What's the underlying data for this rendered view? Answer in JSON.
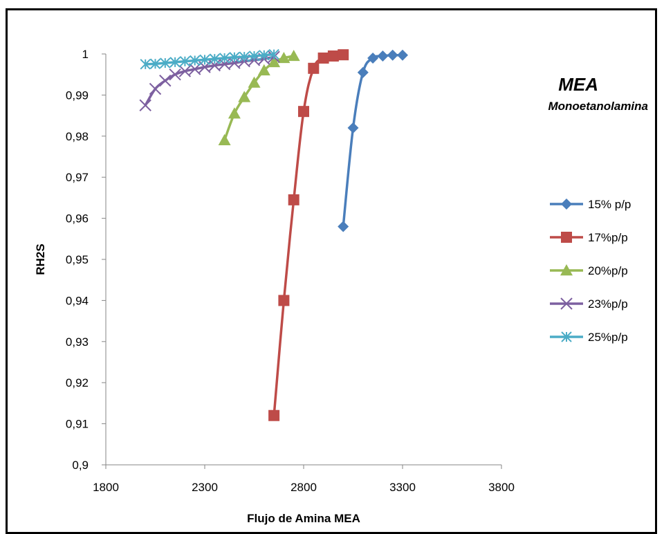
{
  "chart_data": {
    "type": "line",
    "title": "",
    "xlabel": "Flujo de Amina MEA",
    "ylabel": "RH2S",
    "xlim": [
      1800,
      3800
    ],
    "ylim": [
      0.9,
      1.0
    ],
    "xticks": [
      1800,
      2300,
      2800,
      3300,
      3800
    ],
    "xtick_labels": [
      "1800",
      "2300",
      "2800",
      "3300",
      "3800"
    ],
    "yticks": [
      0.9,
      0.91,
      0.92,
      0.93,
      0.94,
      0.95,
      0.96,
      0.97,
      0.98,
      0.99,
      1.0
    ],
    "ytick_labels": [
      "0,9",
      "0,91",
      "0,92",
      "0,93",
      "0,94",
      "0,95",
      "0,96",
      "0,97",
      "0,98",
      "0,99",
      "1"
    ],
    "grid": false,
    "legend_position": "right",
    "annotations": {
      "title": "MEA",
      "subtitle": "Monoetanolamina"
    },
    "series": [
      {
        "name": "15% p/p",
        "color": "#4a7ebb",
        "marker": "diamond",
        "points": [
          [
            3000,
            0.958
          ],
          [
            3050,
            0.982
          ],
          [
            3100,
            0.9955
          ],
          [
            3150,
            0.999
          ],
          [
            3200,
            0.9995
          ],
          [
            3250,
            0.9997
          ],
          [
            3300,
            0.9997
          ]
        ]
      },
      {
        "name": "17%p/p",
        "color": "#be4b48",
        "marker": "square",
        "points": [
          [
            2650,
            0.912
          ],
          [
            2700,
            0.94
          ],
          [
            2750,
            0.9645
          ],
          [
            2800,
            0.986
          ],
          [
            2850,
            0.9965
          ],
          [
            2900,
            0.999
          ],
          [
            2950,
            0.9995
          ],
          [
            3000,
            0.9998
          ]
        ]
      },
      {
        "name": "20%p/p",
        "color": "#98b954",
        "marker": "triangle",
        "points": [
          [
            2400,
            0.979
          ],
          [
            2450,
            0.9855
          ],
          [
            2500,
            0.9895
          ],
          [
            2550,
            0.993
          ],
          [
            2600,
            0.996
          ],
          [
            2650,
            0.998
          ],
          [
            2700,
            0.999
          ],
          [
            2750,
            0.9995
          ]
        ]
      },
      {
        "name": "23%p/p",
        "color": "#7d60a0",
        "marker": "x",
        "points": [
          [
            2000,
            0.9875
          ],
          [
            2050,
            0.9915
          ],
          [
            2100,
            0.9935
          ],
          [
            2150,
            0.995
          ],
          [
            2200,
            0.9958
          ],
          [
            2250,
            0.9963
          ],
          [
            2300,
            0.9968
          ],
          [
            2350,
            0.9972
          ],
          [
            2400,
            0.9975
          ],
          [
            2450,
            0.9978
          ],
          [
            2500,
            0.9982
          ],
          [
            2550,
            0.9985
          ],
          [
            2600,
            0.9988
          ],
          [
            2650,
            0.9993
          ]
        ]
      },
      {
        "name": "25%p/p",
        "color": "#4bacc6",
        "marker": "star",
        "points": [
          [
            2000,
            0.9975
          ],
          [
            2050,
            0.9976
          ],
          [
            2100,
            0.9978
          ],
          [
            2150,
            0.998
          ],
          [
            2200,
            0.9982
          ],
          [
            2250,
            0.9984
          ],
          [
            2300,
            0.9986
          ],
          [
            2350,
            0.9988
          ],
          [
            2400,
            0.999
          ],
          [
            2450,
            0.9992
          ],
          [
            2500,
            0.9993
          ],
          [
            2550,
            0.9995
          ],
          [
            2600,
            0.9997
          ],
          [
            2650,
            0.9999
          ]
        ]
      }
    ]
  }
}
